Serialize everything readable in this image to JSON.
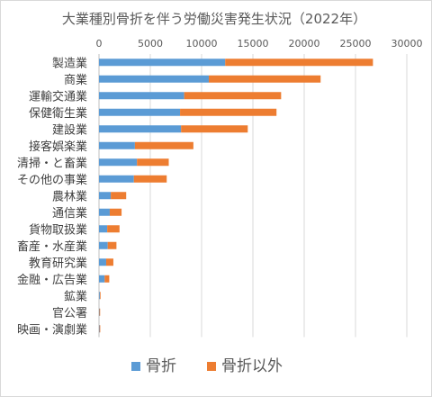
{
  "chart_data": {
    "type": "bar",
    "orientation": "horizontal",
    "stacked": true,
    "title": "大業種別骨折を伴う労働災害発生状況（2022年）",
    "xlabel": "",
    "ylabel": "",
    "xlim": [
      0,
      30000
    ],
    "xticks": [
      0,
      5000,
      10000,
      15000,
      20000,
      25000,
      30000
    ],
    "x_axis_position": "top",
    "grid": true,
    "legend_position": "bottom",
    "categories": [
      "製造業",
      "商業",
      "運輸交通業",
      "保健衛生業",
      "建設業",
      "接客娯楽業",
      "清掃・と畜業",
      "その他の事業",
      "農林業",
      "通信業",
      "貨物取扱業",
      "畜産・水産業",
      "教育研究業",
      "金融・広告業",
      "鉱業",
      "官公署",
      "映画・演劇業"
    ],
    "series": [
      {
        "name": "骨折",
        "color": "#5b9bd5",
        "values": [
          12300,
          10700,
          8300,
          7900,
          8000,
          3500,
          3700,
          3400,
          1150,
          1050,
          800,
          850,
          700,
          550,
          80,
          40,
          50
        ]
      },
      {
        "name": "骨折以外",
        "color": "#ed7d31",
        "values": [
          14400,
          10900,
          9450,
          9400,
          6500,
          5700,
          3100,
          3200,
          1500,
          1150,
          1200,
          850,
          700,
          450,
          70,
          30,
          40
        ]
      }
    ]
  }
}
